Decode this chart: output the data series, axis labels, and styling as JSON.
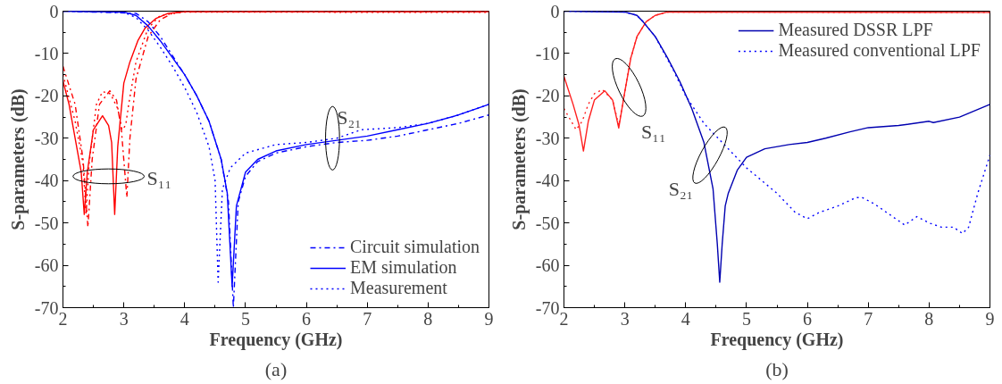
{
  "chart_data": [
    {
      "type": "line",
      "xlabel": "Frequency (GHz)",
      "ylabel": "S-parameters (dB)",
      "xlim": [
        2,
        9
      ],
      "ylim": [
        -70,
        0
      ],
      "xticks": [
        2,
        3,
        4,
        5,
        6,
        7,
        8,
        9
      ],
      "yticks": [
        0,
        -10,
        -20,
        -30,
        -40,
        -50,
        -60,
        -70
      ],
      "grid": false,
      "legend": "bottom right",
      "annotations": [
        "S₁₁",
        "S₂₁",
        "(a)"
      ],
      "series": [
        {
          "color": "#ff0000",
          "line_style": "dashdot",
          "x": [
            2.0,
            2.2,
            2.33,
            2.41,
            2.48,
            2.6,
            2.77,
            2.88,
            2.96,
            3.05,
            3.1,
            3.2,
            3.4,
            3.6,
            3.8,
            4.0,
            9.0
          ],
          "values": [
            -13,
            -22,
            -35,
            -51,
            -35,
            -22,
            -18.8,
            -21,
            -28,
            -44,
            -30,
            -16,
            -6,
            -2,
            -0.5,
            -0.1,
            -0.1
          ]
        },
        {
          "color": "#ff0000",
          "line_style": "solid",
          "x": [
            2.0,
            2.1,
            2.2,
            2.3,
            2.35,
            2.4,
            2.5,
            2.65,
            2.75,
            2.8,
            2.85,
            2.9,
            3.0,
            3.1,
            3.23,
            3.35,
            3.53,
            3.73,
            4.0,
            9.0
          ],
          "values": [
            -16.5,
            -22,
            -30,
            -38,
            -48,
            -38,
            -28,
            -24.7,
            -27,
            -31,
            -48,
            -32,
            -17,
            -12,
            -7,
            -4,
            -1.7,
            -0.5,
            -0.1,
            -0.1
          ]
        },
        {
          "color": "#ff0000",
          "line_style": "dotted",
          "x": [
            2.0,
            2.2,
            2.33,
            2.38,
            2.43,
            2.55,
            2.65,
            2.78,
            2.9,
            2.97,
            3.03,
            3.08,
            3.2,
            3.4,
            3.6,
            4.0,
            9.0
          ],
          "values": [
            -15,
            -26,
            -36,
            -48,
            -36,
            -22,
            -19,
            -19.5,
            -23,
            -28,
            -27,
            -22,
            -12,
            -4,
            -1,
            -0.2,
            -0.3
          ]
        },
        {
          "name": "Circuit simulation",
          "color": "#0000ff",
          "line_style": "dashdot",
          "x": [
            2.0,
            3.2,
            3.4,
            3.6,
            3.8,
            4.0,
            4.2,
            4.4,
            4.6,
            4.72,
            4.8,
            4.88,
            5.0,
            5.2,
            5.5,
            6.0,
            6.5,
            7.0,
            7.5,
            8.0,
            8.5,
            9.0
          ],
          "values": [
            0,
            -0.5,
            -2.5,
            -6,
            -10.5,
            -15,
            -20,
            -26,
            -35,
            -45,
            -70,
            -45,
            -39,
            -35.5,
            -33.5,
            -32,
            -31,
            -30.5,
            -29.5,
            -28,
            -26.5,
            -24.5
          ]
        },
        {
          "name": "EM simulation",
          "color": "#0000ff",
          "line_style": "solid",
          "x": [
            2.0,
            3.0,
            3.2,
            3.4,
            3.6,
            3.8,
            4.0,
            4.2,
            4.4,
            4.6,
            4.7,
            4.78,
            4.85,
            5.0,
            5.2,
            5.5,
            6.0,
            6.5,
            7.0,
            7.5,
            8.0,
            8.5,
            9.0
          ],
          "values": [
            0,
            -0.2,
            -1,
            -3.5,
            -7,
            -11,
            -15,
            -20,
            -26,
            -35,
            -43,
            -65,
            -46,
            -38,
            -35,
            -33,
            -31.5,
            -30.5,
            -29.5,
            -28,
            -26.5,
            -24.5,
            -22
          ]
        },
        {
          "name": "Measurement",
          "color": "#0000ff",
          "line_style": "dotted",
          "x": [
            2.0,
            3.0,
            3.2,
            3.4,
            3.6,
            3.8,
            4.0,
            4.2,
            4.4,
            4.5,
            4.55,
            4.62,
            4.75,
            5.0,
            5.5,
            6.0,
            6.5,
            6.9,
            7.5,
            8.0,
            8.5,
            9.0
          ],
          "values": [
            0,
            -0.3,
            -1.5,
            -4.5,
            -8.5,
            -13,
            -18,
            -24,
            -32,
            -40,
            -64,
            -42,
            -37,
            -33.5,
            -31.5,
            -31,
            -30,
            -28,
            -27.5,
            -26.5,
            -24.5,
            -22
          ]
        }
      ]
    },
    {
      "type": "line",
      "xlabel": "Frequency (GHz)",
      "ylabel": "S-parameters (dB)",
      "xlim": [
        2,
        9
      ],
      "ylim": [
        -70,
        0
      ],
      "xticks": [
        2,
        3,
        4,
        5,
        6,
        7,
        8,
        9
      ],
      "yticks": [
        0,
        -10,
        -20,
        -30,
        -40,
        -50,
        -60,
        -70
      ],
      "grid": false,
      "legend": "top right",
      "annotations": [
        "S₁₁",
        "S₂₁",
        "(b)"
      ],
      "series": [
        {
          "color": "#ff2020",
          "line_style": "solid",
          "x": [
            2.0,
            2.15,
            2.25,
            2.32,
            2.4,
            2.5,
            2.67,
            2.8,
            2.9,
            3.0,
            3.1,
            3.2,
            3.35,
            3.5,
            3.7,
            9.0
          ],
          "values": [
            -15.4,
            -22,
            -27,
            -33,
            -26,
            -21,
            -18.8,
            -21,
            -27.6,
            -19,
            -11,
            -6,
            -2.5,
            -1,
            -0.2,
            -0.3
          ]
        },
        {
          "color": "#ff2020",
          "line_style": "dotted",
          "x": [
            2.0,
            2.12,
            2.2,
            2.3,
            2.4,
            2.5,
            2.63,
            2.8,
            2.9,
            3.0,
            3.1,
            3.2,
            3.35,
            3.5,
            3.7,
            9.0
          ],
          "values": [
            -23,
            -26,
            -28,
            -26,
            -22,
            -19.5,
            -18.5,
            -21,
            -27,
            -19,
            -11,
            -6,
            -2.5,
            -1,
            -0.2,
            -0.3
          ]
        },
        {
          "name": "Measured DSSR LPF",
          "color": "#0000b0",
          "line_style": "solid",
          "x": [
            2.0,
            3.0,
            3.2,
            3.3,
            3.5,
            3.7,
            3.9,
            4.1,
            4.3,
            4.45,
            4.52,
            4.56,
            4.6,
            4.65,
            4.7,
            4.85,
            5.0,
            5.3,
            5.7,
            6.0,
            6.3,
            6.7,
            7.0,
            7.5,
            8.0,
            8.07,
            8.5,
            9.0
          ],
          "values": [
            0,
            -0.2,
            -1,
            -2.5,
            -6,
            -11,
            -16.5,
            -23,
            -31,
            -42,
            -55,
            -64,
            -55,
            -46,
            -43,
            -37.5,
            -34.5,
            -32.5,
            -31.5,
            -31,
            -30,
            -28.5,
            -27.5,
            -27,
            -26,
            -26.3,
            -25,
            -22
          ]
        },
        {
          "name": "Measured conventional LPF",
          "color": "#0000ff",
          "line_style": "dotted",
          "x": [
            2.0,
            3.0,
            3.2,
            3.3,
            3.5,
            3.8,
            4.0,
            4.3,
            4.6,
            5.0,
            5.5,
            5.8,
            6.0,
            6.2,
            6.5,
            6.8,
            6.9,
            7.1,
            7.4,
            7.6,
            7.8,
            8.0,
            8.2,
            8.4,
            8.55,
            8.65,
            8.8,
            9.0
          ],
          "values": [
            0,
            -0.2,
            -1,
            -2.5,
            -6,
            -14,
            -20,
            -26.5,
            -31,
            -37,
            -43,
            -47.5,
            -49,
            -47.5,
            -46,
            -44,
            -44,
            -45.5,
            -48.5,
            -50.5,
            -48.5,
            -50,
            -51,
            -51,
            -52.5,
            -51,
            -43,
            -34
          ]
        }
      ]
    }
  ]
}
